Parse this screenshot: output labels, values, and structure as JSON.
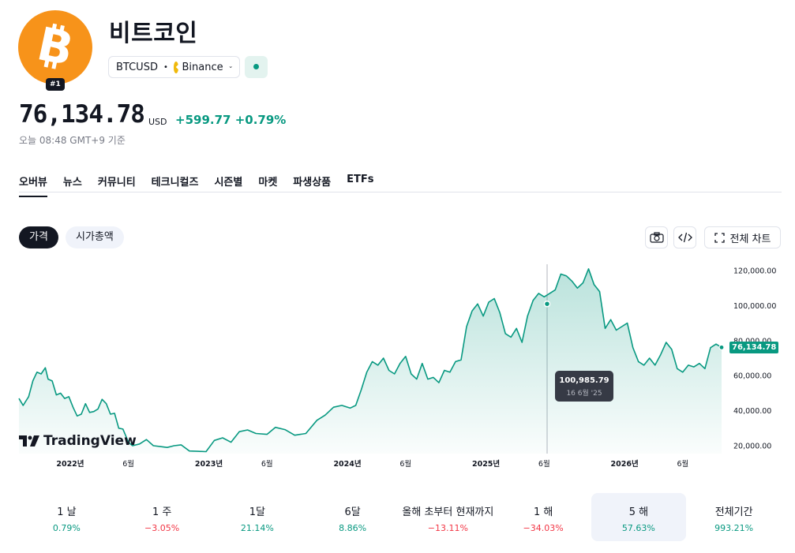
{
  "asset": {
    "name": "비트코인",
    "rank": "#1",
    "symbol": "BTCUSD",
    "exchange": "Binance",
    "price": "76,134.78",
    "currency": "USD",
    "change": "+599.77",
    "change_pct": "+0.79%",
    "as_of": "오늘 08:48 GMT+9 기준"
  },
  "colors": {
    "accent": "#089981",
    "negative": "#f23645",
    "logo": "#f7931a"
  },
  "tabs": [
    {
      "label": "오버뷰"
    },
    {
      "label": "뉴스"
    },
    {
      "label": "커뮤니티"
    },
    {
      "label": "테크니컬즈"
    },
    {
      "label": "시즌별"
    },
    {
      "label": "마켓"
    },
    {
      "label": "파생상품"
    },
    {
      "label": "ETFs"
    }
  ],
  "chart_toggle": {
    "price": "가격",
    "market_cap": "시가총액"
  },
  "toolbar": {
    "fullscreen": "전체 차트",
    "icons": [
      "camera-icon",
      "code-icon",
      "fullscreen-icon"
    ]
  },
  "branding": {
    "watermark": "TradingView"
  },
  "tooltip": {
    "value": "100,985.79",
    "date": "16 6월 '25"
  },
  "chart_data": {
    "type": "area",
    "title": "",
    "y_ticks": [
      "120,000.00",
      "100,000.00",
      "80,000.00",
      "60,000.00",
      "40,000.00",
      "20,000.00"
    ],
    "x_ticks": [
      {
        "label": "2022년",
        "t": 2022.0
      },
      {
        "label": "6월",
        "t": 2022.42
      },
      {
        "label": "2023년",
        "t": 2023.0
      },
      {
        "label": "6월",
        "t": 2023.42
      },
      {
        "label": "2024년",
        "t": 2024.0
      },
      {
        "label": "6월",
        "t": 2024.42
      },
      {
        "label": "2025년",
        "t": 2025.0
      },
      {
        "label": "6월",
        "t": 2025.42
      },
      {
        "label": "2026년",
        "t": 2026.0
      },
      {
        "label": "6월",
        "t": 2026.42
      }
    ],
    "ylim": [
      20000,
      120000
    ],
    "last_value": "76,134.78",
    "series": [
      {
        "values": [
          [
            2021.63,
            47000
          ],
          [
            2021.66,
            43000
          ],
          [
            2021.7,
            48000
          ],
          [
            2021.73,
            57000
          ],
          [
            2021.76,
            62000
          ],
          [
            2021.79,
            61000
          ],
          [
            2021.82,
            64500
          ],
          [
            2021.84,
            58000
          ],
          [
            2021.87,
            57000
          ],
          [
            2021.9,
            49000
          ],
          [
            2021.93,
            50000
          ],
          [
            2021.96,
            47000
          ],
          [
            2021.99,
            48000
          ],
          [
            2022.02,
            42000
          ],
          [
            2022.05,
            37000
          ],
          [
            2022.08,
            38000
          ],
          [
            2022.11,
            44000
          ],
          [
            2022.14,
            39000
          ],
          [
            2022.17,
            39500
          ],
          [
            2022.2,
            41000
          ],
          [
            2022.23,
            46500
          ],
          [
            2022.26,
            44000
          ],
          [
            2022.29,
            38000
          ],
          [
            2022.32,
            38500
          ],
          [
            2022.35,
            30000
          ],
          [
            2022.38,
            29500
          ],
          [
            2022.42,
            22000
          ],
          [
            2022.45,
            20000
          ],
          [
            2022.5,
            21000
          ],
          [
            2022.55,
            23500
          ],
          [
            2022.6,
            20000
          ],
          [
            2022.65,
            19500
          ],
          [
            2022.7,
            19000
          ],
          [
            2022.75,
            20000
          ],
          [
            2022.8,
            20500
          ],
          [
            2022.86,
            17000
          ],
          [
            2022.92,
            16800
          ],
          [
            2022.98,
            16600
          ],
          [
            2023.04,
            23000
          ],
          [
            2023.1,
            24500
          ],
          [
            2023.16,
            22000
          ],
          [
            2023.22,
            28000
          ],
          [
            2023.28,
            29000
          ],
          [
            2023.34,
            27000
          ],
          [
            2023.42,
            26500
          ],
          [
            2023.48,
            30500
          ],
          [
            2023.55,
            29200
          ],
          [
            2023.62,
            26000
          ],
          [
            2023.7,
            27000
          ],
          [
            2023.78,
            34500
          ],
          [
            2023.84,
            37500
          ],
          [
            2023.9,
            42000
          ],
          [
            2023.96,
            43000
          ],
          [
            2024.02,
            41500
          ],
          [
            2024.06,
            43000
          ],
          [
            2024.1,
            52000
          ],
          [
            2024.14,
            62000
          ],
          [
            2024.18,
            68000
          ],
          [
            2024.22,
            66000
          ],
          [
            2024.26,
            70000
          ],
          [
            2024.3,
            63000
          ],
          [
            2024.34,
            61000
          ],
          [
            2024.38,
            67000
          ],
          [
            2024.42,
            71000
          ],
          [
            2024.46,
            61000
          ],
          [
            2024.5,
            58000
          ],
          [
            2024.54,
            67000
          ],
          [
            2024.58,
            58000
          ],
          [
            2024.62,
            59000
          ],
          [
            2024.66,
            56000
          ],
          [
            2024.7,
            63000
          ],
          [
            2024.74,
            62000
          ],
          [
            2024.78,
            68000
          ],
          [
            2024.82,
            69000
          ],
          [
            2024.86,
            88000
          ],
          [
            2024.9,
            97000
          ],
          [
            2024.94,
            101000
          ],
          [
            2024.98,
            94000
          ],
          [
            2025.02,
            102000
          ],
          [
            2025.06,
            104000
          ],
          [
            2025.1,
            96000
          ],
          [
            2025.14,
            84000
          ],
          [
            2025.18,
            82000
          ],
          [
            2025.22,
            87000
          ],
          [
            2025.26,
            79000
          ],
          [
            2025.3,
            94000
          ],
          [
            2025.34,
            103000
          ],
          [
            2025.38,
            107000
          ],
          [
            2025.42,
            105000
          ],
          [
            2025.46,
            107000
          ],
          [
            2025.5,
            109000
          ],
          [
            2025.54,
            118000
          ],
          [
            2025.58,
            117000
          ],
          [
            2025.62,
            114000
          ],
          [
            2025.66,
            110000
          ],
          [
            2025.7,
            113000
          ],
          [
            2025.74,
            121000
          ],
          [
            2025.78,
            112000
          ],
          [
            2025.82,
            108000
          ],
          [
            2025.86,
            87000
          ],
          [
            2025.9,
            92000
          ],
          [
            2025.94,
            86000
          ],
          [
            2025.98,
            88000
          ],
          [
            2026.02,
            90000
          ],
          [
            2026.06,
            76000
          ],
          [
            2026.1,
            68000
          ],
          [
            2026.14,
            66000
          ],
          [
            2026.18,
            70000
          ],
          [
            2026.22,
            66000
          ],
          [
            2026.26,
            72000
          ],
          [
            2026.3,
            79000
          ],
          [
            2026.34,
            75000
          ],
          [
            2026.38,
            64000
          ],
          [
            2026.42,
            62000
          ],
          [
            2026.46,
            66000
          ],
          [
            2026.5,
            65000
          ],
          [
            2026.54,
            67000
          ],
          [
            2026.58,
            64000
          ],
          [
            2026.62,
            76000
          ],
          [
            2026.66,
            78000
          ],
          [
            2026.7,
            76134.78
          ]
        ]
      }
    ]
  },
  "performance": [
    {
      "label": "1 날",
      "value": "0.79%",
      "sign": "pos"
    },
    {
      "label": "1 주",
      "value": "−3.05%",
      "sign": "neg"
    },
    {
      "label": "1달",
      "value": "21.14%",
      "sign": "pos"
    },
    {
      "label": "6달",
      "value": "8.86%",
      "sign": "pos"
    },
    {
      "label": "올해 초부터 현재까지",
      "value": "−13.11%",
      "sign": "neg"
    },
    {
      "label": "1 해",
      "value": "−34.03%",
      "sign": "neg"
    },
    {
      "label": "5 해",
      "value": "57.63%",
      "sign": "pos",
      "active": true
    },
    {
      "label": "전체기간",
      "value": "993.21%",
      "sign": "pos"
    }
  ]
}
